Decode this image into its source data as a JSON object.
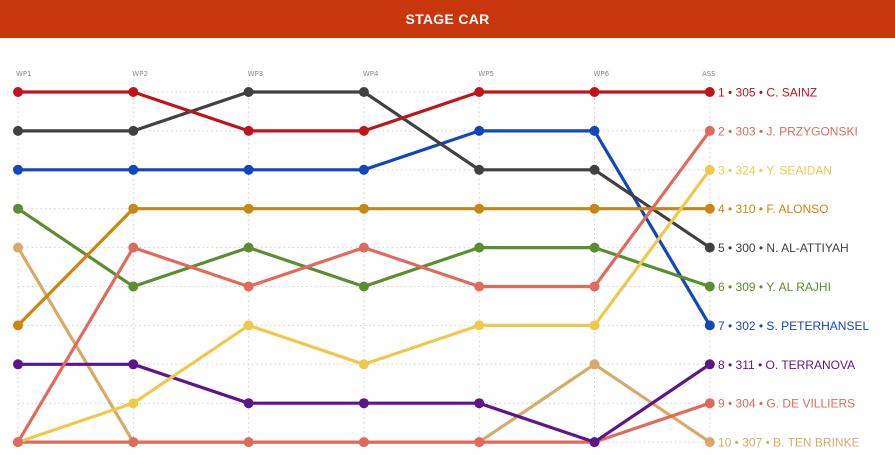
{
  "header": {
    "title": "STAGE CAR"
  },
  "chart_data": {
    "type": "line",
    "title": "STAGE CAR",
    "x": [
      "WP1",
      "WP2",
      "WP3",
      "WP4",
      "WP5",
      "WP6",
      "ASS"
    ],
    "y_axis": "position",
    "ylim": [
      1,
      10
    ],
    "y_reversed": true,
    "grid": true,
    "series": [
      {
        "label": "1 • 305 • C. SAINZ",
        "color": "#c0141c",
        "values": [
          1,
          1,
          2,
          2,
          1,
          1,
          1
        ]
      },
      {
        "label": "2 • 303 • J. PRZYGONSKI",
        "color": "#e06b5c",
        "values": [
          10,
          5,
          6,
          5,
          6,
          6,
          2
        ]
      },
      {
        "label": "3 • 324 • Y. SEAIDAN",
        "color": "#efc94c",
        "values": [
          10,
          9,
          7,
          8,
          7,
          7,
          3
        ]
      },
      {
        "label": "4 • 310 • F. ALONSO",
        "color": "#c98612",
        "values": [
          7,
          4,
          4,
          4,
          4,
          4,
          4
        ]
      },
      {
        "label": "5 • 300 • N. AL-ATTIYAH",
        "color": "#424040",
        "values": [
          2,
          2,
          1,
          1,
          3,
          3,
          5
        ]
      },
      {
        "label": "6 • 309 • Y. AL RAJHI",
        "color": "#5b8e2e",
        "values": [
          4,
          6,
          5,
          6,
          5,
          5,
          6
        ]
      },
      {
        "label": "7 • 302 • S. PETERHANSEL",
        "color": "#1345bc",
        "values": [
          3,
          3,
          3,
          3,
          2,
          2,
          7
        ]
      },
      {
        "label": "8 • 311 • O. TERRANOVA",
        "color": "#5e1589",
        "values": [
          8,
          8,
          9,
          9,
          9,
          10,
          8
        ]
      },
      {
        "label": "9 • 304 • G. DE VILLIERS",
        "color": "#e06b5c",
        "values": [
          10,
          10,
          10,
          10,
          10,
          10,
          9
        ]
      },
      {
        "label": "10 • 307 • B. TEN BRINKE",
        "color": "#d8a96a",
        "values": [
          5,
          10,
          10,
          10,
          10,
          8,
          10
        ]
      }
    ]
  }
}
